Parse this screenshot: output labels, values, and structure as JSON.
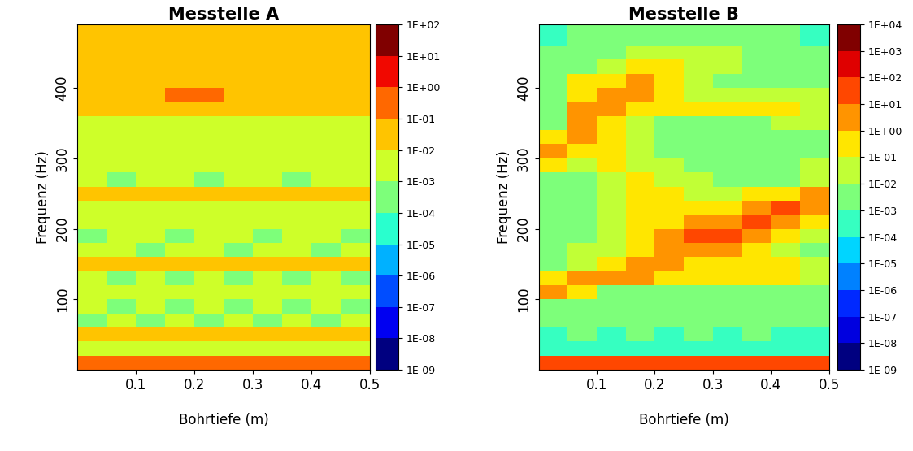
{
  "chart_data": [
    {
      "type": "heatmap",
      "title": "Messtelle A",
      "x_label": "Bohrtiefe (m)",
      "y_label": "Frequenz (Hz)",
      "xlim": [
        0,
        0.5
      ],
      "xticks": [
        0.1,
        0.2,
        0.3,
        0.4,
        0.5
      ],
      "ylim": [
        0,
        490
      ],
      "yticks": [
        100,
        200,
        300,
        400
      ],
      "x_edges": [
        0,
        0.05,
        0.1,
        0.15,
        0.2,
        0.25,
        0.3,
        0.35,
        0.4,
        0.45,
        0.5
      ],
      "y_edges": [
        0,
        20,
        40,
        60,
        80,
        100,
        120,
        140,
        160,
        180,
        200,
        220,
        240,
        260,
        280,
        300,
        320,
        340,
        360,
        380,
        400,
        420,
        440,
        460,
        480,
        490
      ],
      "cells": [
        [
          0.3,
          0.3,
          0.3,
          0.3,
          0.3,
          0.3,
          0.3,
          0.3,
          0.3,
          0.3
        ],
        [
          0.002,
          0.002,
          0.002,
          0.002,
          0.002,
          0.002,
          0.002,
          0.002,
          0.002,
          0.002
        ],
        [
          0.03,
          0.03,
          0.03,
          0.03,
          0.03,
          0.03,
          0.03,
          0.03,
          0.03,
          0.03
        ],
        [
          0.0008,
          0.002,
          0.0008,
          0.002,
          0.0008,
          0.002,
          0.0008,
          0.002,
          0.0008,
          0.002
        ],
        [
          0.002,
          0.0008,
          0.002,
          0.0008,
          0.002,
          0.0008,
          0.002,
          0.0008,
          0.002,
          0.0008
        ],
        [
          0.005,
          0.005,
          0.005,
          0.005,
          0.005,
          0.005,
          0.005,
          0.005,
          0.005,
          0.005
        ],
        [
          0.002,
          0.0008,
          0.002,
          0.0008,
          0.002,
          0.0008,
          0.002,
          0.0008,
          0.002,
          0.0008
        ],
        [
          0.03,
          0.03,
          0.03,
          0.03,
          0.03,
          0.03,
          0.03,
          0.03,
          0.03,
          0.03
        ],
        [
          0.002,
          0.002,
          0.0008,
          0.002,
          0.002,
          0.0008,
          0.002,
          0.002,
          0.0008,
          0.002
        ],
        [
          0.0008,
          0.002,
          0.002,
          0.0008,
          0.002,
          0.002,
          0.0008,
          0.002,
          0.002,
          0.0008
        ],
        [
          0.005,
          0.005,
          0.005,
          0.005,
          0.005,
          0.005,
          0.005,
          0.005,
          0.005,
          0.005
        ],
        [
          0.002,
          0.002,
          0.002,
          0.002,
          0.002,
          0.002,
          0.002,
          0.002,
          0.002,
          0.002
        ],
        [
          0.03,
          0.03,
          0.03,
          0.03,
          0.03,
          0.03,
          0.03,
          0.03,
          0.03,
          0.03
        ],
        [
          0.002,
          0.0008,
          0.002,
          0.002,
          0.0008,
          0.002,
          0.002,
          0.0008,
          0.002,
          0.002
        ],
        [
          0.002,
          0.002,
          0.002,
          0.002,
          0.002,
          0.002,
          0.002,
          0.002,
          0.002,
          0.002
        ],
        [
          0.005,
          0.005,
          0.005,
          0.005,
          0.005,
          0.005,
          0.005,
          0.005,
          0.005,
          0.005
        ],
        [
          0.005,
          0.005,
          0.005,
          0.005,
          0.005,
          0.005,
          0.005,
          0.005,
          0.005,
          0.005
        ],
        [
          0.005,
          0.005,
          0.005,
          0.005,
          0.005,
          0.005,
          0.005,
          0.005,
          0.005,
          0.005
        ],
        [
          0.03,
          0.03,
          0.03,
          0.03,
          0.03,
          0.03,
          0.03,
          0.03,
          0.03,
          0.03
        ],
        [
          0.03,
          0.03,
          0.03,
          0.3,
          0.3,
          0.03,
          0.03,
          0.03,
          0.03,
          0.03
        ],
        [
          0.01,
          0.01,
          0.01,
          0.01,
          0.05,
          0.05,
          0.05,
          0.01,
          0.01,
          0.01
        ],
        [
          0.01,
          0.01,
          0.01,
          0.01,
          0.01,
          0.03,
          0.03,
          0.03,
          0.01,
          0.01
        ],
        [
          0.01,
          0.01,
          0.01,
          0.01,
          0.01,
          0.01,
          0.01,
          0.01,
          0.01,
          0.01
        ],
        [
          0.02,
          0.02,
          0.02,
          0.02,
          0.02,
          0.02,
          0.02,
          0.02,
          0.02,
          0.02
        ],
        [
          0.03,
          0.03,
          0.03,
          0.03,
          0.03,
          0.03,
          0.03,
          0.03,
          0.03,
          0.03
        ]
      ],
      "colorbar": {
        "lim": [
          1e-09,
          100
        ],
        "ticks": [
          {
            "value": 1e-09,
            "label": "1E-09"
          },
          {
            "value": 1e-08,
            "label": "1E-08"
          },
          {
            "value": 1e-07,
            "label": "1E-07"
          },
          {
            "value": 1e-06,
            "label": "1E-06"
          },
          {
            "value": 1e-05,
            "label": "1E-05"
          },
          {
            "value": 0.0001,
            "label": "1E-04"
          },
          {
            "value": 0.001,
            "label": "1E-03"
          },
          {
            "value": 0.01,
            "label": "1E-02"
          },
          {
            "value": 0.1,
            "label": "1E-01"
          },
          {
            "value": 1,
            "label": "1E+00"
          },
          {
            "value": 10,
            "label": "1E+01"
          },
          {
            "value": 100,
            "label": "1E+02"
          }
        ]
      }
    },
    {
      "type": "heatmap",
      "title": "Messtelle B",
      "x_label": "Bohrtiefe (m)",
      "y_label": "Frequenz (Hz)",
      "xlim": [
        0,
        0.5
      ],
      "xticks": [
        0.1,
        0.2,
        0.3,
        0.4,
        0.5
      ],
      "ylim": [
        0,
        490
      ],
      "yticks": [
        100,
        200,
        300,
        400
      ],
      "x_edges": [
        0,
        0.05,
        0.1,
        0.15,
        0.2,
        0.25,
        0.3,
        0.35,
        0.4,
        0.45,
        0.5
      ],
      "y_edges": [
        0,
        20,
        40,
        60,
        80,
        100,
        120,
        140,
        160,
        180,
        200,
        220,
        240,
        260,
        280,
        300,
        320,
        340,
        360,
        380,
        400,
        420,
        440,
        460,
        480,
        490
      ],
      "cells": [
        [
          10,
          10,
          10,
          10,
          10,
          10,
          10,
          10,
          10,
          10
        ],
        [
          0.0005,
          0.0005,
          0.0005,
          0.0005,
          0.0005,
          0.0005,
          0.0005,
          0.0005,
          0.0005,
          0.0005
        ],
        [
          0.0005,
          0.001,
          0.0005,
          0.001,
          0.0005,
          0.001,
          0.0005,
          0.001,
          0.0005,
          0.0005
        ],
        [
          0.001,
          0.001,
          0.001,
          0.001,
          0.001,
          0.001,
          0.001,
          0.001,
          0.001,
          0.001
        ],
        [
          0.001,
          0.003,
          0.001,
          0.003,
          0.001,
          0.003,
          0.001,
          0.003,
          0.001,
          0.001
        ],
        [
          3,
          0.3,
          0.003,
          0.003,
          0.003,
          0.003,
          0.003,
          0.003,
          0.003,
          0.003
        ],
        [
          0.1,
          3,
          3,
          1,
          0.3,
          0.1,
          0.1,
          0.1,
          0.3,
          0.01
        ],
        [
          0.003,
          0.01,
          0.3,
          3,
          3,
          0.3,
          0.3,
          0.3,
          0.1,
          0.01
        ],
        [
          0.003,
          0.01,
          0.03,
          0.3,
          3,
          1,
          1,
          0.3,
          0.01,
          0.003
        ],
        [
          0.003,
          0.003,
          0.03,
          0.1,
          1,
          10,
          10,
          1,
          0.3,
          0.03
        ],
        [
          0.003,
          0.003,
          0.01,
          0.1,
          0.3,
          3,
          3,
          10,
          3,
          0.3
        ],
        [
          0.003,
          0.003,
          0.01,
          0.1,
          0.3,
          0.3,
          0.3,
          3,
          10,
          3
        ],
        [
          0.003,
          0.003,
          0.03,
          0.1,
          0.1,
          0.03,
          0.03,
          0.1,
          0.3,
          3
        ],
        [
          0.001,
          0.003,
          0.03,
          0.1,
          0.03,
          0.01,
          0.003,
          0.003,
          0.003,
          0.03
        ],
        [
          0.1,
          0.03,
          0.1,
          0.03,
          0.01,
          0.003,
          0.003,
          0.003,
          0.003,
          0.01
        ],
        [
          3,
          0.3,
          0.1,
          0.03,
          0.003,
          0.003,
          0.003,
          0.003,
          0.003,
          0.003
        ],
        [
          0.3,
          3,
          0.3,
          0.03,
          0.003,
          0.003,
          0.003,
          0.003,
          0.003,
          0.003
        ],
        [
          0.003,
          1,
          0.3,
          0.03,
          0.003,
          0.003,
          0.003,
          0.003,
          0.03,
          0.03
        ],
        [
          0.001,
          3,
          3,
          0.3,
          0.3,
          0.3,
          0.3,
          0.3,
          0.3,
          0.03
        ],
        [
          0.001,
          0.3,
          1,
          3,
          0.3,
          0.01,
          0.01,
          0.01,
          0.01,
          0.01
        ],
        [
          0.001,
          0.3,
          0.3,
          3,
          0.3,
          0.01,
          0.003,
          0.003,
          0.003,
          0.003
        ],
        [
          0.001,
          0.003,
          0.01,
          0.1,
          0.3,
          0.03,
          0.01,
          0.003,
          0.003,
          0.001
        ],
        [
          0.001,
          0.003,
          0.003,
          0.01,
          0.03,
          0.03,
          0.01,
          0.003,
          0.001,
          0.001
        ],
        [
          0.0005,
          0.001,
          0.003,
          0.003,
          0.003,
          0.003,
          0.003,
          0.001,
          0.001,
          0.0005
        ],
        [
          0.0005,
          0.001,
          0.001,
          0.001,
          0.001,
          0.001,
          0.001,
          0.001,
          0.001,
          0.0005
        ]
      ],
      "colorbar": {
        "lim": [
          1e-09,
          10000
        ],
        "ticks": [
          {
            "value": 1e-09,
            "label": "1E-09"
          },
          {
            "value": 1e-08,
            "label": "1E-08"
          },
          {
            "value": 1e-07,
            "label": "1E-07"
          },
          {
            "value": 1e-06,
            "label": "1E-06"
          },
          {
            "value": 1e-05,
            "label": "1E-05"
          },
          {
            "value": 0.0001,
            "label": "1E-04"
          },
          {
            "value": 0.001,
            "label": "1E-03"
          },
          {
            "value": 0.01,
            "label": "1E-02"
          },
          {
            "value": 0.1,
            "label": "1E-01"
          },
          {
            "value": 1,
            "label": "1E+00"
          },
          {
            "value": 10,
            "label": "1E+01"
          },
          {
            "value": 100,
            "label": "1E+02"
          },
          {
            "value": 1000,
            "label": "1E+03"
          },
          {
            "value": 10000,
            "label": "1E+04"
          }
        ]
      }
    }
  ]
}
